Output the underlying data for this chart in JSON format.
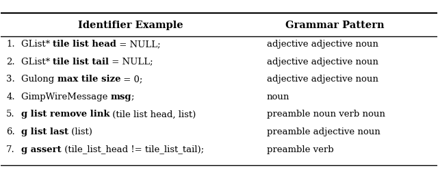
{
  "col1_header": "Identifier Example",
  "col2_header": "Grammar Pattern",
  "rows": [
    {
      "num": "1.",
      "segments": [
        {
          "text": "GList* ",
          "bold": false
        },
        {
          "text": "tile list head",
          "bold": true
        },
        {
          "text": " = NULL;",
          "bold": false
        }
      ],
      "pattern": "adjective adjective noun"
    },
    {
      "num": "2.",
      "segments": [
        {
          "text": "GList* ",
          "bold": false
        },
        {
          "text": "tile list tail",
          "bold": true
        },
        {
          "text": " = NULL;",
          "bold": false
        }
      ],
      "pattern": "adjective adjective noun"
    },
    {
      "num": "3.",
      "segments": [
        {
          "text": "Gulong ",
          "bold": false
        },
        {
          "text": "max tile size",
          "bold": true
        },
        {
          "text": " = 0;",
          "bold": false
        }
      ],
      "pattern": "adjective adjective noun"
    },
    {
      "num": "4.",
      "segments": [
        {
          "text": "GimpWireMessage ",
          "bold": false
        },
        {
          "text": "msg",
          "bold": true
        },
        {
          "text": ";",
          "bold": false
        }
      ],
      "pattern": "noun"
    },
    {
      "num": "5.",
      "segments": [
        {
          "text": "g list remove link",
          "bold": true
        },
        {
          "text": " (tile list head, list)",
          "bold": false
        }
      ],
      "pattern": "preamble noun verb noun"
    },
    {
      "num": "6.",
      "segments": [
        {
          "text": "g list last",
          "bold": true
        },
        {
          "text": " (list)",
          "bold": false
        }
      ],
      "pattern": "preamble adjective noun"
    },
    {
      "num": "7.",
      "segments": [
        {
          "text": "g assert",
          "bold": true
        },
        {
          "text": " (tile_list_head != tile_list_tail);",
          "bold": false
        }
      ],
      "pattern": "preamble verb"
    }
  ],
  "bg_color": "#ffffff",
  "text_color": "#000000",
  "font_size": 9.5,
  "header_font_size": 10.5,
  "figsize": [
    6.4,
    2.48
  ],
  "dpi": 100
}
